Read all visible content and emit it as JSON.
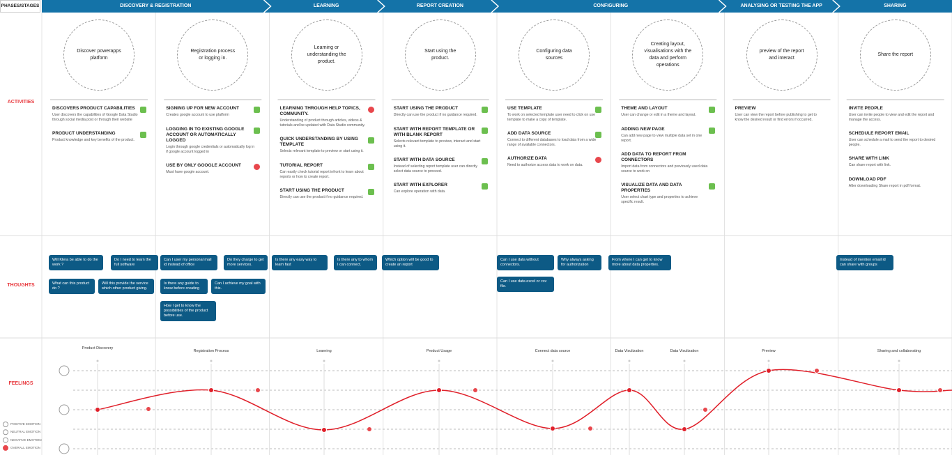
{
  "header": {
    "label": "PHASES/STAGES",
    "stages": [
      "DISCOVERY & REGISTRATION",
      "LEARNING",
      "REPORT CREATION",
      "CONFIGURING",
      "ANALYSING OR TESTING THE APP",
      "SHARING"
    ]
  },
  "rows": [
    "ACTIVITIES",
    "THOUGHTS",
    "FEELINGS"
  ],
  "columns": [
    {
      "activity": "Discover powerapps platform",
      "items": [
        {
          "title": "DISCOVERS PRODUCT CAPABILITIES",
          "text": "User discovers the capabilities of Google Data Studio through  social media post or through their website"
        },
        {
          "title": "PRODUCT UNDERSTANDING",
          "text": "Product knowledge and key benefits of the product."
        }
      ]
    },
    {
      "activity": "Registration process or logging in.",
      "items": [
        {
          "title": "SIGNING UP FOR NEW ACCOUNT",
          "text": "Creates google account to use platform"
        },
        {
          "title": "LOGGING IN TO EXISTING GOOGLE ACCOUNT OR AUTOMATICALLY LOGGED",
          "text": "Login through google credentials or automatically log in if google account logged in"
        },
        {
          "title": "USE BY ONLY GOOGLE ACCOUNT",
          "text": "Must have google account."
        }
      ]
    },
    {
      "activity": "Learning or understanding the product.",
      "items": [
        {
          "title": "LEARNING THROUGH HELP TOPICS, COMMUNITY.",
          "text": "Understanding of product through articles, videos & tutorials and be updated with Data Studio community."
        },
        {
          "title": "QUICK UNDERSTANDING BY USING TEMPLATE",
          "text": "Selects relevant template to preview or start using it."
        },
        {
          "title": "TUTORIAL REPORT",
          "text": "Can easily check tutorial report infront to learn about reports or how to create report."
        },
        {
          "title": "START USING THE PRODUCT",
          "text": "Directly can use the product if no guidance required."
        }
      ]
    },
    {
      "activity": "Start using the product.",
      "items": [
        {
          "title": "START USING THE PRODUCT",
          "text": "Directly can use the product if no guidance required."
        },
        {
          "title": "START WITH REPORT TEMPLATE OR WITH BLANK REPORT",
          "text": "Selects relevant template to preview, interact and start using it."
        },
        {
          "title": "START WITH DATA SOURCE",
          "text": "Instead of selecting report template user can directly select data source to proceed."
        },
        {
          "title": "START WITH EXPLORER",
          "text": "Can explore operation with data."
        }
      ]
    },
    {
      "activity": "Configuring data sources",
      "items": [
        {
          "title": "USE TEMPLATE",
          "text": "To work on selected template user need to click on use template to make a copy of template."
        },
        {
          "title": "ADD DATA SOURCE",
          "text": "Connect to different databases to load data from a wide range of available connectors."
        },
        {
          "title": "AUTHORIZE DATA",
          "text": "Need to authorize access data to work on data."
        }
      ]
    },
    {
      "activity": "Creating layout, visualisations with the data and perform operations",
      "items": [
        {
          "title": "THEME AND LAYOUT",
          "text": "User can change or edit in a theme and layout."
        },
        {
          "title": "ADDING NEW PAGE",
          "text": "Can add new page to view multiple data set in one report."
        },
        {
          "title": "ADD DATA TO REPORT FROM CONNECTORS",
          "text": "Import data from connectors and previously used data source to work on"
        },
        {
          "title": "VISUALIZE DATA AND DATA PROPERTIES",
          "text": "User select chart type and properties to achieve specific result."
        }
      ]
    },
    {
      "activity": "preview of the report and interact",
      "items": [
        {
          "title": "PREVIEW",
          "text": "User can view the report before publishing to get to know the desired result or find errors if occurred."
        }
      ]
    },
    {
      "activity": "Share the report",
      "items": [
        {
          "title": "INVITE PEOPLE",
          "text": "User can invite people to view and edit the report and manage the access."
        },
        {
          "title": "SCHEDULE REPORT EMAIL",
          "text": "User can schedule a mail to send the report to desired people."
        },
        {
          "title": "SHARE WITH LINK",
          "text": "Can share report with link."
        },
        {
          "title": "DOWNLOAD PDF",
          "text": "After downloading Share report in pdf format."
        }
      ]
    }
  ],
  "thoughts": [
    "Will Klera be able to do the work ?",
    "Do I need to learn the full software",
    "What can this product do ?",
    "Will this provide the service which other product giving.",
    "Can I user my personal mail id instead of office",
    "Do they charge to get more services.",
    "Is there any guide to know before creating",
    "Can I achieve my goal with this.",
    "How I get to know the possibilities of the product before use.",
    "Is there any easy way to learn fast",
    "Is there any to whom I can connect.",
    "Which option will be good to create an report",
    "Can I use data without connectors.",
    "Why always asking for authorization",
    "Can I use data excel or csv file.",
    "From where I can get to know more about data properties.",
    "Instead of mention email id can share with groups"
  ],
  "feelings": {
    "labels": [
      "Product Discovery",
      "Registration Process",
      "Learning",
      "Product Usage",
      "Connect data source",
      "Data Visulization",
      "Data Visulization",
      "Preview",
      "Sharing and collaborating"
    ],
    "legend": [
      "POSITIVE EMOTION",
      "NEUTRAL EMOTION",
      "NEGATIVE EMOTION",
      "OVERALL EMOTION"
    ]
  }
}
